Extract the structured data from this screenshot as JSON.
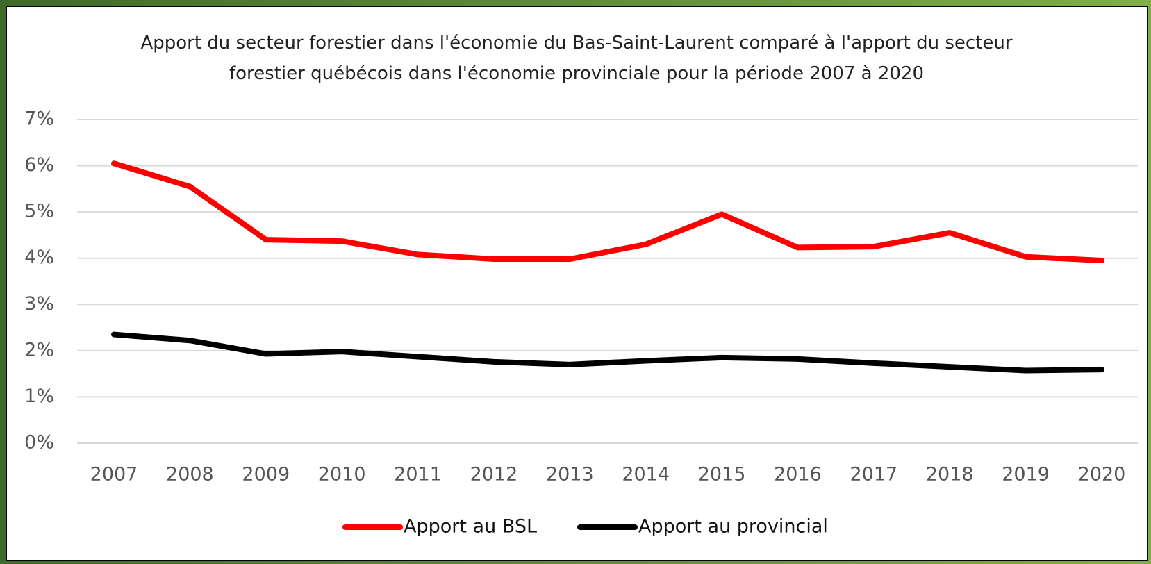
{
  "chart_data": {
    "type": "line",
    "title": "Apport du secteur forestier dans l'économie du Bas-Saint-Laurent comparé à l'apport du secteur forestier québécois dans l'économie provinciale pour la période 2007 à 2020",
    "categories": [
      "2007",
      "2008",
      "2009",
      "2010",
      "2011",
      "2012",
      "2013",
      "2014",
      "2015",
      "2016",
      "2017",
      "2018",
      "2019",
      "2020"
    ],
    "series": [
      {
        "name": "Apport au BSL",
        "color": "#ff0000",
        "values": [
          6.05,
          5.55,
          4.4,
          4.37,
          4.08,
          3.98,
          3.98,
          4.3,
          4.95,
          4.23,
          4.25,
          4.55,
          4.03,
          3.95
        ]
      },
      {
        "name": "Apport au provincial",
        "color": "#000000",
        "values": [
          2.35,
          2.22,
          1.93,
          1.98,
          1.87,
          1.76,
          1.7,
          1.78,
          1.85,
          1.82,
          1.73,
          1.65,
          1.57,
          1.59
        ]
      }
    ],
    "ylim": [
      0,
      7
    ],
    "yticks": [
      {
        "value": 0,
        "label": "0%"
      },
      {
        "value": 1,
        "label": "1%"
      },
      {
        "value": 2,
        "label": "2%"
      },
      {
        "value": 3,
        "label": "3%"
      },
      {
        "value": 4,
        "label": "4%"
      },
      {
        "value": 5,
        "label": "5%"
      },
      {
        "value": 6,
        "label": "6%"
      },
      {
        "value": 7,
        "label": "7%"
      }
    ],
    "grid": true,
    "legend": "bottom"
  }
}
